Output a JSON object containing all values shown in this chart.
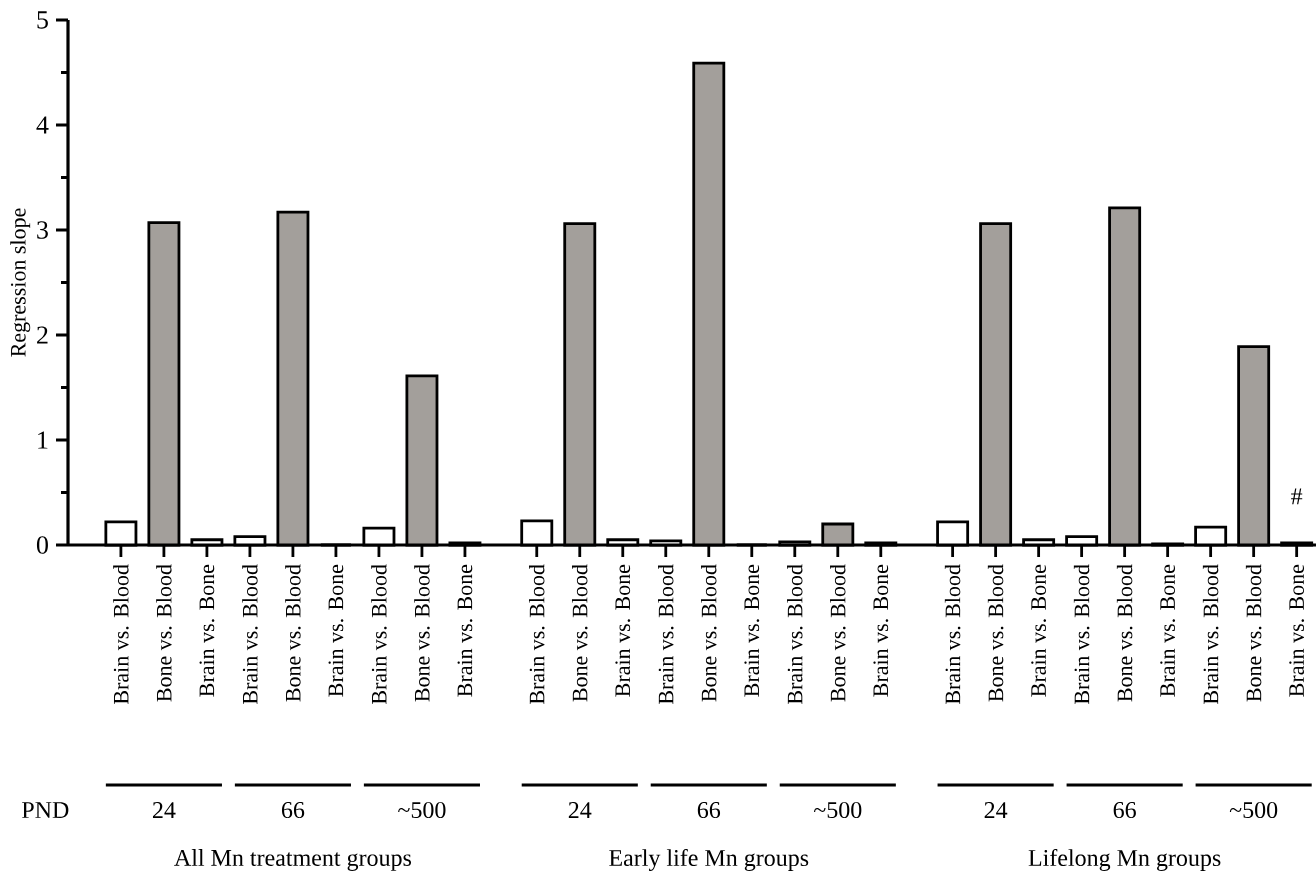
{
  "chart_data": {
    "type": "bar",
    "ylabel": "Regression slope",
    "categories": [
      "Brain vs. Blood",
      "Bone vs. Blood",
      "Brain vs. Bone",
      "Brain vs. Blood",
      "Bone vs. Blood",
      "Brain vs. Bone",
      "Brain vs. Blood",
      "Bone vs. Blood",
      "Brain vs. Bone",
      "Brain vs. Blood",
      "Bone vs. Blood",
      "Brain vs. Bone",
      "Brain vs. Blood",
      "Bone vs. Blood",
      "Brain vs. Bone",
      "Brain vs. Blood",
      "Bone vs. Blood",
      "Brain vs. Bone",
      "Brain vs. Blood",
      "Bone vs. Blood",
      "Brain vs. Bone",
      "Brain vs. Blood",
      "Bone vs. Blood",
      "Brain vs. Bone",
      "Brain vs. Blood",
      "Bone vs. Blood",
      "Brain vs. Bone"
    ],
    "values": [
      0.22,
      3.07,
      0.05,
      0.08,
      3.17,
      0.0,
      0.16,
      1.61,
      0.02,
      0.23,
      3.06,
      0.05,
      0.04,
      4.59,
      0.0,
      0.03,
      0.2,
      0.02,
      0.22,
      3.06,
      0.05,
      0.08,
      3.21,
      0.01,
      0.17,
      1.89,
      0.02
    ],
    "colors": [
      "#ffffff",
      "#a39f9b",
      "#ffffff",
      "#ffffff",
      "#a39f9b",
      "#ffffff",
      "#ffffff",
      "#a39f9b",
      "#ffffff",
      "#ffffff",
      "#a39f9b",
      "#ffffff",
      "#ffffff",
      "#a39f9b",
      "#ffffff",
      "#ffffff",
      "#a39f9b",
      "#ffffff",
      "#ffffff",
      "#a39f9b",
      "#ffffff",
      "#ffffff",
      "#a39f9b",
      "#ffffff",
      "#ffffff",
      "#a39f9b",
      "#ffffff"
    ],
    "ylim": [
      0,
      5
    ],
    "yticks": [
      0,
      1,
      2,
      3,
      4,
      5
    ],
    "annotations": [
      "PND",
      "24",
      "66",
      "~500",
      "24",
      "66",
      "~500",
      "24",
      "66",
      "~500",
      "All Mn treatment groups",
      "Early life Mn groups",
      "Lifelong Mn groups",
      "#"
    ]
  }
}
